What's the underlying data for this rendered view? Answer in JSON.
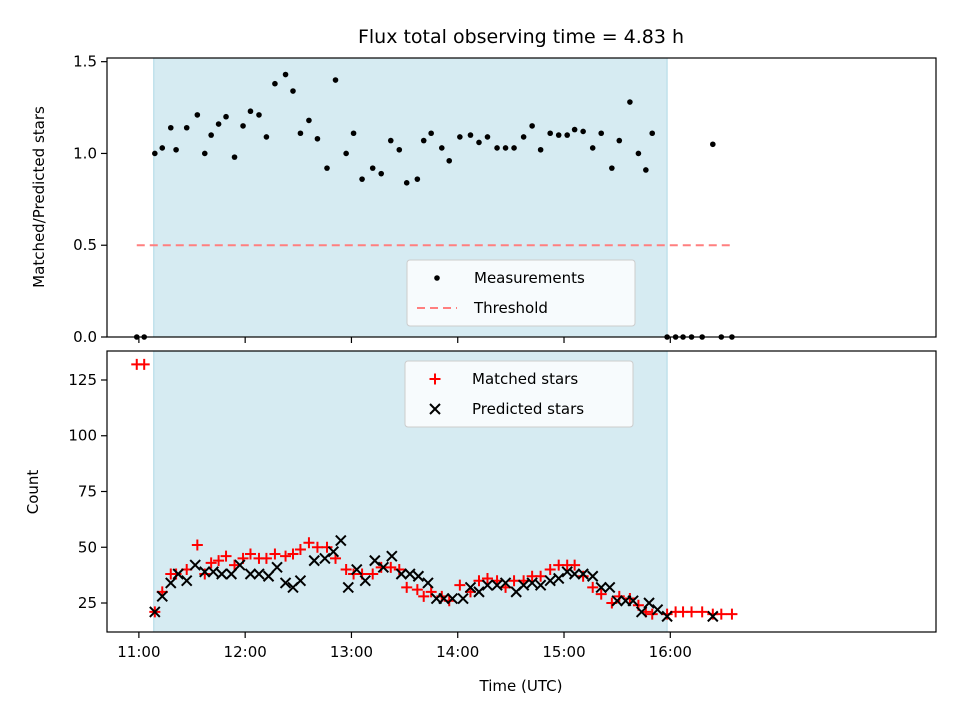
{
  "chart_data": {
    "type": "scatter",
    "title": "Flux total observing time = 4.83 h",
    "xlabel": "Time (UTC)",
    "x_ticks": [
      {
        "x": 11.0,
        "label": "11:00"
      },
      {
        "x": 12.0,
        "label": "12:00"
      },
      {
        "x": 13.0,
        "label": "13:00"
      },
      {
        "x": 14.0,
        "label": "14:00"
      },
      {
        "x": 15.0,
        "label": "15:00"
      },
      {
        "x": 16.0,
        "label": "16:00"
      }
    ],
    "xlim": [
      10.7,
      18.5
    ],
    "observing_window": [
      11.14,
      15.97
    ],
    "colors": {
      "window": "#add8e6",
      "measurements": "#000000",
      "threshold": "#ff7f7f",
      "matched": "#ff0000",
      "predicted": "#000000"
    },
    "panels": [
      {
        "ylabel": "Matched/Predicted stars",
        "ylim": [
          0,
          1.52
        ],
        "yticks": [
          {
            "y": 0.0,
            "label": "0.0"
          },
          {
            "y": 0.5,
            "label": "0.5"
          },
          {
            "y": 1.0,
            "label": "1.0"
          },
          {
            "y": 1.5,
            "label": "1.5"
          }
        ],
        "legend": {
          "placement": "lower-center",
          "entries": [
            "Measurements",
            "Threshold"
          ]
        },
        "threshold": {
          "name": "Threshold",
          "y": 0.5,
          "x_range": [
            10.98,
            16.58
          ]
        },
        "series": [
          {
            "name": "Measurements",
            "x": [
              10.98,
              11.05,
              11.15,
              11.22,
              11.3,
              11.35,
              11.45,
              11.55,
              11.62,
              11.68,
              11.75,
              11.82,
              11.9,
              11.98,
              12.05,
              12.13,
              12.2,
              12.28,
              12.38,
              12.45,
              12.52,
              12.6,
              12.68,
              12.77,
              12.85,
              12.95,
              13.02,
              13.1,
              13.2,
              13.28,
              13.37,
              13.45,
              13.52,
              13.62,
              13.68,
              13.75,
              13.85,
              13.92,
              14.02,
              14.12,
              14.2,
              14.28,
              14.37,
              14.45,
              14.53,
              14.62,
              14.7,
              14.78,
              14.87,
              14.95,
              15.03,
              15.1,
              15.18,
              15.27,
              15.35,
              15.45,
              15.52,
              15.62,
              15.7,
              15.77,
              15.83,
              15.97,
              16.05,
              16.12,
              16.2,
              16.3,
              16.4,
              16.48,
              16.58
            ],
            "y": [
              0,
              0,
              1.0,
              1.03,
              1.14,
              1.02,
              1.14,
              1.21,
              1.0,
              1.1,
              1.16,
              1.2,
              0.98,
              1.15,
              1.23,
              1.21,
              1.09,
              1.38,
              1.43,
              1.34,
              1.11,
              1.18,
              1.08,
              0.92,
              1.4,
              1.0,
              1.11,
              0.86,
              0.92,
              0.89,
              1.07,
              1.02,
              0.84,
              0.86,
              1.07,
              1.11,
              1.03,
              0.96,
              1.09,
              1.1,
              1.06,
              1.09,
              1.03,
              1.03,
              1.03,
              1.09,
              1.15,
              1.02,
              1.11,
              1.1,
              1.1,
              1.13,
              1.12,
              1.03,
              1.11,
              0.92,
              1.07,
              1.28,
              1.0,
              0.91,
              1.11,
              0,
              0,
              0,
              0,
              0,
              1.05,
              0,
              0
            ]
          }
        ]
      },
      {
        "ylabel": "Count",
        "ylim": [
          12,
          138
        ],
        "yticks": [
          {
            "y": 25,
            "label": "25"
          },
          {
            "y": 50,
            "label": "50"
          },
          {
            "y": 75,
            "label": "75"
          },
          {
            "y": 100,
            "label": "100"
          },
          {
            "y": 125,
            "label": "125"
          }
        ],
        "legend": {
          "placement": "upper-center",
          "entries": [
            "Matched stars",
            "Predicted stars"
          ]
        },
        "series": [
          {
            "name": "Matched stars",
            "marker": "plus",
            "x": [
              10.98,
              11.05,
              11.15,
              11.22,
              11.3,
              11.35,
              11.45,
              11.55,
              11.62,
              11.68,
              11.75,
              11.82,
              11.9,
              11.98,
              12.05,
              12.13,
              12.2,
              12.28,
              12.38,
              12.45,
              12.52,
              12.6,
              12.68,
              12.77,
              12.85,
              12.95,
              13.02,
              13.1,
              13.2,
              13.28,
              13.37,
              13.45,
              13.52,
              13.62,
              13.68,
              13.75,
              13.85,
              13.92,
              14.02,
              14.12,
              14.2,
              14.28,
              14.37,
              14.45,
              14.53,
              14.62,
              14.7,
              14.78,
              14.87,
              14.95,
              15.03,
              15.1,
              15.18,
              15.27,
              15.35,
              15.45,
              15.52,
              15.62,
              15.7,
              15.77,
              15.83,
              15.97,
              16.05,
              16.12,
              16.2,
              16.3,
              16.4,
              16.48,
              16.58
            ],
            "y": [
              132,
              132,
              21,
              30,
              38,
              38,
              40,
              51,
              38,
              43,
              44,
              46,
              42,
              45,
              47,
              45,
              45,
              47,
              46,
              47,
              49,
              52,
              50,
              50,
              45,
              40,
              38,
              38,
              38,
              41,
              41,
              40,
              32,
              31,
              28,
              30,
              28,
              26,
              33,
              30,
              35,
              36,
              35,
              32,
              35,
              35,
              37,
              37,
              40,
              42,
              42,
              42,
              37,
              32,
              29,
              25,
              28,
              27,
              24,
              21,
              20,
              20,
              21,
              21,
              21,
              21,
              20,
              20,
              20
            ]
          },
          {
            "name": "Predicted stars",
            "marker": "x",
            "x": [
              11.15,
              11.22,
              11.3,
              11.37,
              11.45,
              11.53,
              11.62,
              11.7,
              11.78,
              11.87,
              11.95,
              12.05,
              12.13,
              12.22,
              12.3,
              12.38,
              12.45,
              12.52,
              12.65,
              12.75,
              12.83,
              12.9,
              12.97,
              13.05,
              13.13,
              13.22,
              13.3,
              13.38,
              13.47,
              13.55,
              13.63,
              13.72,
              13.8,
              13.87,
              13.95,
              14.05,
              14.12,
              14.2,
              14.28,
              14.37,
              14.45,
              14.55,
              14.62,
              14.7,
              14.78,
              14.87,
              14.95,
              15.03,
              15.1,
              15.18,
              15.27,
              15.35,
              15.43,
              15.5,
              15.58,
              15.65,
              15.73,
              15.8,
              15.88,
              15.97,
              16.4
            ],
            "y": [
              21,
              28,
              34,
              38,
              35,
              42,
              39,
              39,
              38,
              38,
              42,
              38,
              38,
              37,
              41,
              34,
              32,
              35,
              44,
              45,
              48,
              53,
              32,
              40,
              35,
              44,
              41,
              46,
              38,
              38,
              37,
              34,
              27,
              27,
              27,
              27,
              32,
              30,
              33,
              33,
              34,
              30,
              33,
              34,
              33,
              35,
              36,
              39,
              38,
              38,
              37,
              32,
              32,
              26,
              26,
              26,
              21,
              25,
              22,
              19,
              19
            ]
          }
        ]
      }
    ]
  }
}
